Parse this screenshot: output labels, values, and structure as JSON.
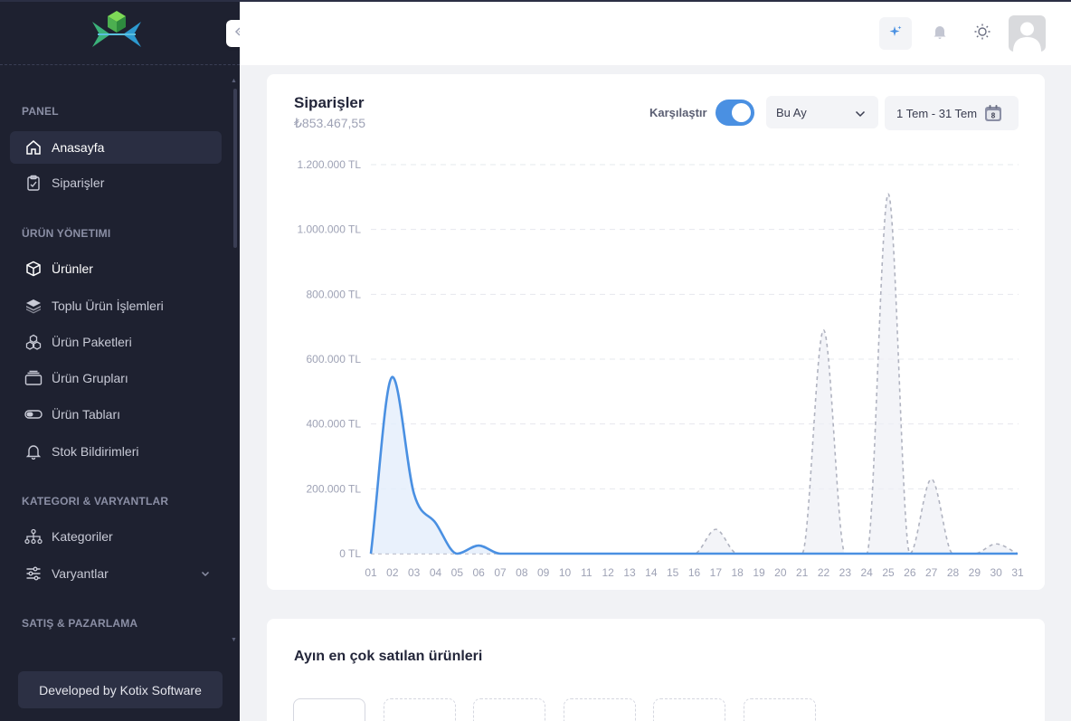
{
  "sidebar": {
    "sections": [
      {
        "label": "PANEL"
      },
      {
        "label": "ÜRÜN YÖNETIMI"
      },
      {
        "label": "KATEGORI & VARYANTLAR"
      },
      {
        "label": "SATIŞ & PAZARLAMA"
      }
    ],
    "items": [
      {
        "label": "Anasayfa",
        "icon": "home-icon"
      },
      {
        "label": "Siparişler",
        "icon": "clipboard-icon"
      },
      {
        "label": "Ürünler",
        "icon": "box-icon"
      },
      {
        "label": "Toplu Ürün İşlemleri",
        "icon": "layers-icon"
      },
      {
        "label": "Ürün Paketleri",
        "icon": "cubes-icon"
      },
      {
        "label": "Ürün Grupları",
        "icon": "stack-icon"
      },
      {
        "label": "Ürün Tabları",
        "icon": "toggle-icon"
      },
      {
        "label": "Stok Bildirimleri",
        "icon": "bell-icon"
      },
      {
        "label": "Kategoriler",
        "icon": "hierarchy-icon"
      },
      {
        "label": "Varyantlar",
        "icon": "sliders-icon"
      }
    ],
    "developer_label": "Developed by Kotix Software"
  },
  "header": {
    "icons": [
      "sparkle-icon",
      "bell-icon",
      "sun-icon",
      "avatar"
    ]
  },
  "orders_card": {
    "title": "Siparişler",
    "total": "₺853.467,55",
    "compare_label": "Karşılaştır",
    "compare_on": true,
    "period_select": "Bu Ay",
    "date_range": "1 Tem - 31 Tem",
    "calendar_day": "8"
  },
  "chart_data": {
    "type": "area",
    "x": [
      "01",
      "02",
      "03",
      "04",
      "05",
      "06",
      "07",
      "08",
      "09",
      "10",
      "11",
      "12",
      "13",
      "14",
      "15",
      "16",
      "17",
      "18",
      "19",
      "20",
      "21",
      "22",
      "23",
      "24",
      "25",
      "26",
      "27",
      "28",
      "29",
      "30",
      "31"
    ],
    "y_tick_labels": [
      "0 TL",
      "200.000 TL",
      "400.000 TL",
      "600.000 TL",
      "800.000 TL",
      "1.000.000 TL",
      "1.200.000 TL"
    ],
    "ylim": [
      0,
      1200000
    ],
    "grid": true,
    "series": [
      {
        "values": [
          0,
          545000,
          185000,
          95000,
          0,
          25000,
          0,
          0,
          0,
          0,
          0,
          0,
          0,
          0,
          0,
          0,
          0,
          0,
          0,
          0,
          0,
          0,
          0,
          0,
          0,
          0,
          0,
          0,
          0,
          0,
          0
        ],
        "color": "#4a90e2",
        "style": "solid"
      },
      {
        "values": [
          0,
          0,
          0,
          0,
          0,
          0,
          0,
          0,
          0,
          0,
          0,
          0,
          0,
          0,
          0,
          0,
          75000,
          0,
          0,
          0,
          0,
          690000,
          0,
          0,
          1110000,
          0,
          230000,
          0,
          0,
          30000,
          0
        ],
        "color": "#b0b3c0",
        "style": "dashed"
      }
    ]
  },
  "top_products_card": {
    "title": "Ayın en çok satılan ürünleri"
  }
}
